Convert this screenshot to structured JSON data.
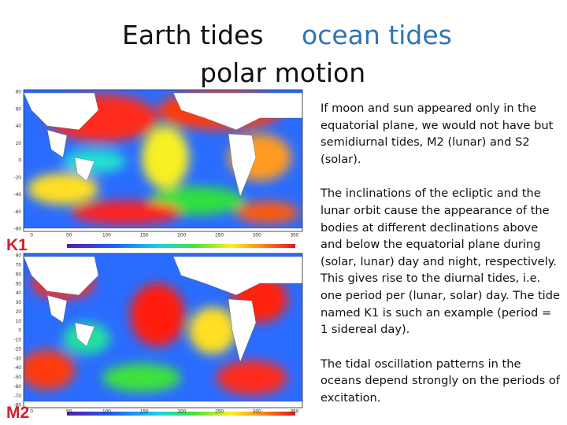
{
  "header": {
    "title_left": "Earth tides",
    "title_right": "ocean tides",
    "title_second": "polar motion"
  },
  "maps": [
    {
      "label": "K1",
      "yticks": [
        "80",
        "60",
        "40",
        "20",
        "0",
        "-20",
        "-40",
        "-60",
        "-80"
      ],
      "xticks": [
        "0",
        "50",
        "100",
        "150",
        "200",
        "250",
        "300",
        "350"
      ]
    },
    {
      "label": "M2",
      "yticks": [
        "80",
        "70",
        "60",
        "50",
        "40",
        "30",
        "20",
        "10",
        "0",
        "-10",
        "-20",
        "-30",
        "-40",
        "-50",
        "-60",
        "-70",
        "-80"
      ],
      "xticks": [
        "0",
        "50",
        "100",
        "150",
        "200",
        "250",
        "300",
        "350"
      ]
    }
  ],
  "paragraphs": [
    "If moon and sun appeared only in the equatorial plane, we would not have but semidiurnal tides, M2 (lunar) and S2 (solar).",
    "The inclinations of the ecliptic and the lunar orbit cause the appearance of the bodies at different declinations above and below the equatorial plane during (solar, lunar) day and night, respectively. This gives rise to the diurnal tides, i.e. one period per (lunar, solar) day.  The tide named K1 is such an example (period = 1 sidereal day).",
    "The tidal oscillation patterns in the oceans depend strongly on the periods of excitation."
  ]
}
